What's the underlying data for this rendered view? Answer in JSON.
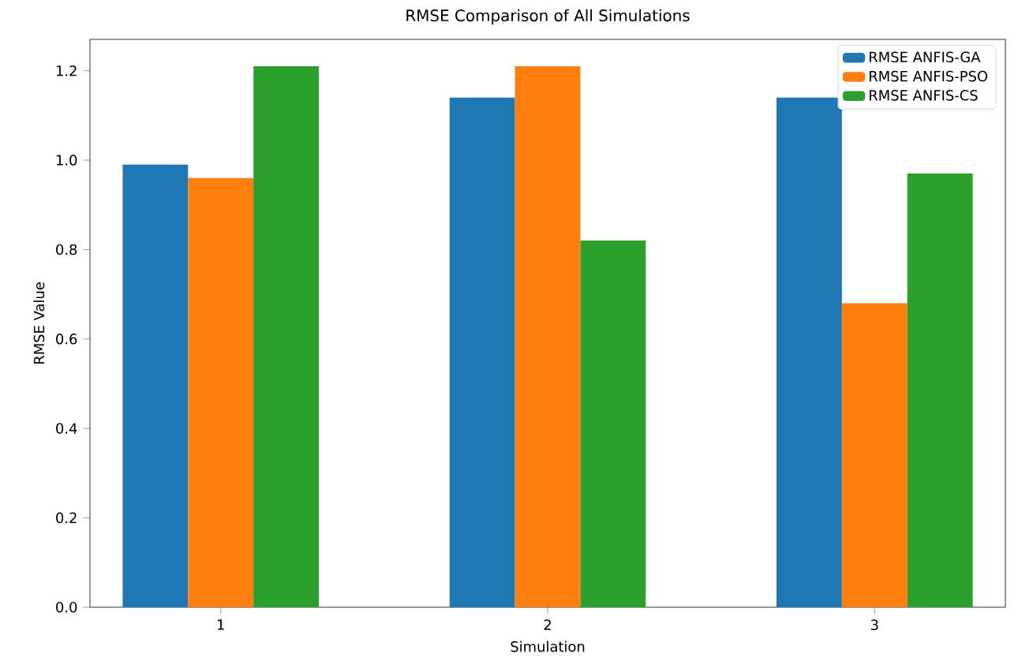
{
  "chart_data": {
    "type": "bar",
    "title": "RMSE Comparison of All Simulations",
    "xlabel": "Simulation",
    "ylabel": "RMSE Value",
    "categories": [
      "1",
      "2",
      "3"
    ],
    "series": [
      {
        "name": "RMSE ANFIS-GA",
        "color": "#1f77b4",
        "values": [
          0.99,
          1.14,
          1.14
        ]
      },
      {
        "name": "RMSE ANFIS-PSO",
        "color": "#ff7f0e",
        "values": [
          0.96,
          1.21,
          0.68
        ]
      },
      {
        "name": "RMSE ANFIS-CS",
        "color": "#2ca02c",
        "values": [
          1.21,
          0.82,
          0.97
        ]
      }
    ],
    "ylim": [
      0,
      1.27
    ],
    "yticks": [
      {
        "value": 0,
        "label": "0.0"
      },
      {
        "value": 0.2,
        "label": "0.2"
      },
      {
        "value": 0.4,
        "label": "0.4"
      },
      {
        "value": 0.6,
        "label": "0.6"
      },
      {
        "value": 0.8,
        "label": "0.8"
      },
      {
        "value": 1.0,
        "label": "1.0"
      },
      {
        "value": 1.2,
        "label": "1.2"
      }
    ],
    "legend": "top right",
    "grid": false
  }
}
